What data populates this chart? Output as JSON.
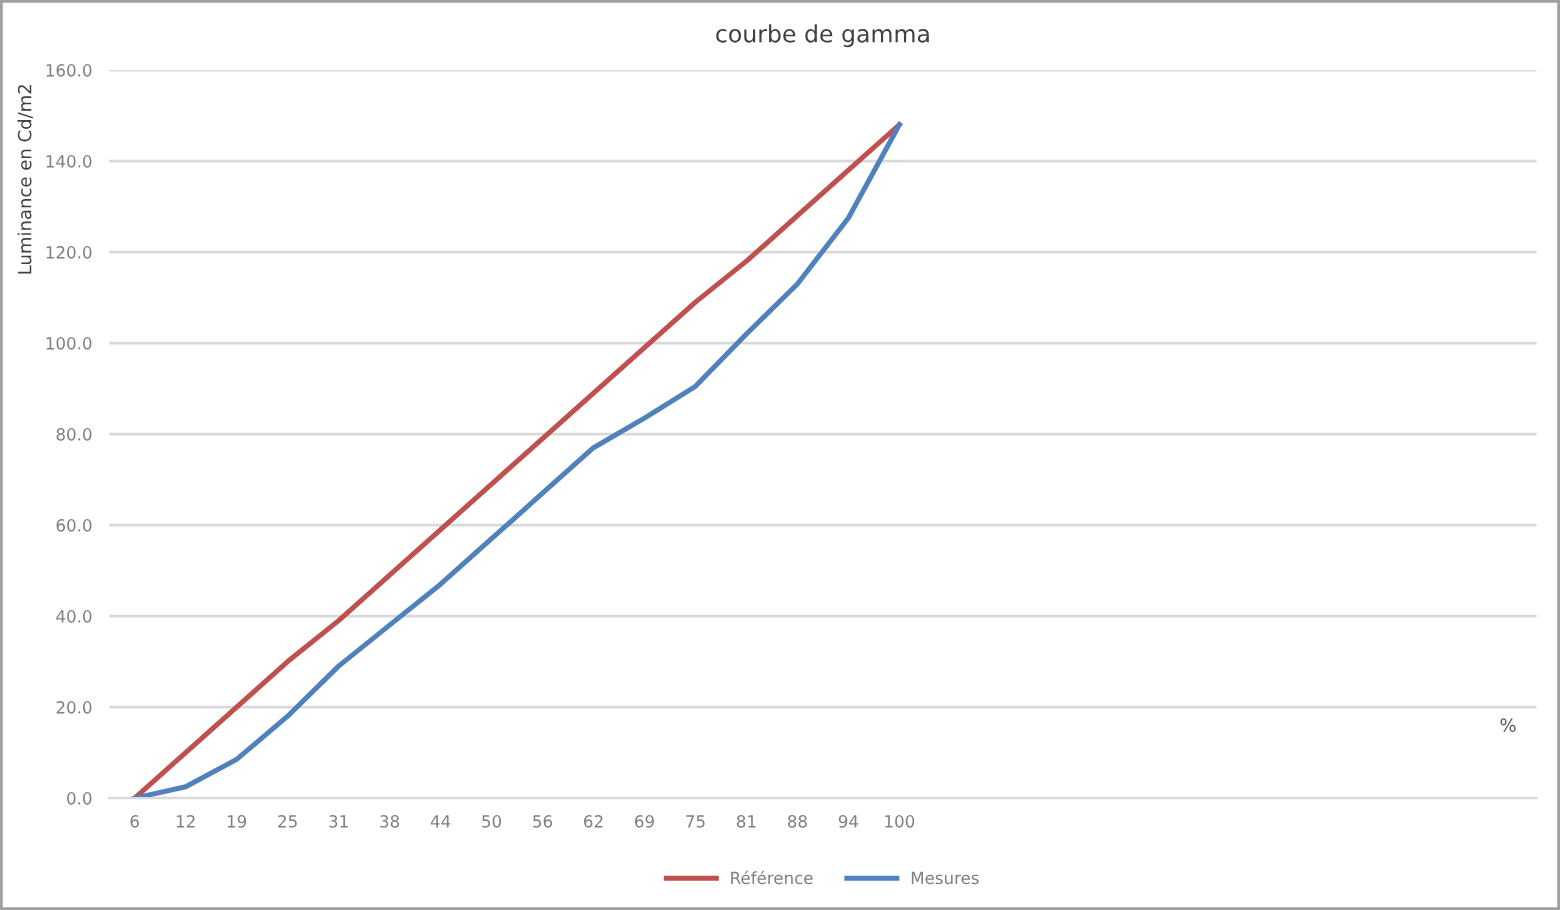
{
  "chart_data": {
    "type": "line",
    "title": "courbe de gamma",
    "ylabel": "Luminance en Cd/m2",
    "xlabel": "%",
    "categories": [
      "6",
      "12",
      "19",
      "25",
      "31",
      "38",
      "44",
      "50",
      "56",
      "62",
      "69",
      "75",
      "81",
      "88",
      "94",
      "100",
      null,
      null,
      null,
      null,
      null,
      null,
      null,
      null,
      null,
      null,
      null,
      null
    ],
    "series": [
      {
        "name": "Référence",
        "color": "#c0504d",
        "values": [
          0,
          10,
          20,
          30,
          39,
          49,
          59,
          69,
          79,
          89,
          99,
          109,
          118,
          128,
          138,
          148,
          null,
          null,
          null,
          null,
          null,
          null,
          null,
          null,
          null,
          null,
          null,
          null
        ]
      },
      {
        "name": "Mesures",
        "color": "#4f81bd",
        "values": [
          0,
          2.5,
          8.5,
          18,
          29,
          38,
          47,
          57,
          67,
          77,
          83.5,
          90.5,
          102,
          113,
          127.5,
          148,
          null,
          null,
          null,
          null,
          null,
          null,
          null,
          null,
          null,
          null,
          null,
          null
        ]
      }
    ],
    "ylim": [
      0,
      160
    ],
    "yticks": [
      {
        "value": 0,
        "label": "0.0"
      },
      {
        "value": 20,
        "label": "20.0"
      },
      {
        "value": 40,
        "label": "40.0"
      },
      {
        "value": 60,
        "label": "60.0"
      },
      {
        "value": 80,
        "label": "80.0"
      },
      {
        "value": 100,
        "label": "100.0"
      },
      {
        "value": 120,
        "label": "120.0"
      },
      {
        "value": 140,
        "label": "140.0"
      },
      {
        "value": 160,
        "label": "160.0"
      }
    ],
    "grid": "y",
    "legend": "bottom",
    "marker": "none",
    "line_style": "solid"
  }
}
